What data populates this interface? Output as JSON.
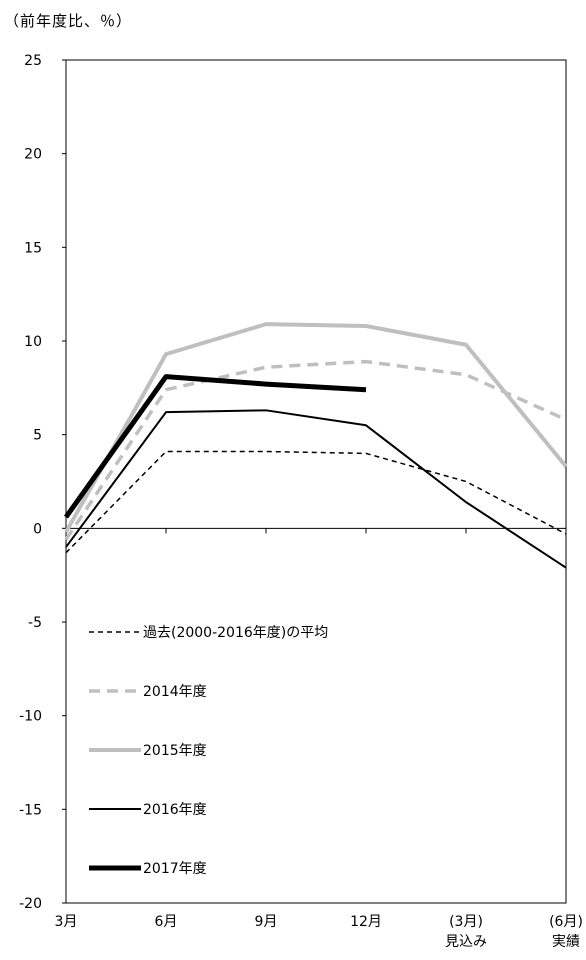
{
  "chart_data": {
    "type": "line",
    "unit_label": "（前年度比、％）",
    "categories": [
      "3月",
      "6月",
      "9月",
      "12月",
      "(3月)",
      "(6月)"
    ],
    "category_sublabels": [
      "",
      "",
      "",
      "",
      "見込み",
      "実績"
    ],
    "ylim": [
      -20,
      25
    ],
    "yticks": [
      -20,
      -15,
      -10,
      -5,
      0,
      5,
      10,
      15,
      20,
      25
    ],
    "grid": false,
    "legend_position": "bottom-left",
    "series": [
      {
        "name": "過去(2000-2016年度)の平均",
        "color": "#000000",
        "width": 1.5,
        "dash": "5,4",
        "values": [
          -1.3,
          4.1,
          4.1,
          4.0,
          2.5,
          -0.3
        ]
      },
      {
        "name": "2014年度",
        "color": "#bfbfbf",
        "width": 3.5,
        "dash": "11,7",
        "values": [
          -0.6,
          7.4,
          8.6,
          8.9,
          8.2,
          5.8
        ]
      },
      {
        "name": "2015年度",
        "color": "#bfbfbf",
        "width": 4,
        "dash": "",
        "values": [
          -0.2,
          9.3,
          10.9,
          10.8,
          9.8,
          3.3
        ]
      },
      {
        "name": "2016年度",
        "color": "#000000",
        "width": 2,
        "dash": "",
        "values": [
          -1.0,
          6.2,
          6.3,
          5.5,
          1.4,
          -2.1
        ]
      },
      {
        "name": "2017年度",
        "color": "#000000",
        "width": 5,
        "dash": "",
        "values": [
          0.6,
          8.1,
          7.7,
          7.4,
          null,
          null
        ]
      }
    ]
  }
}
